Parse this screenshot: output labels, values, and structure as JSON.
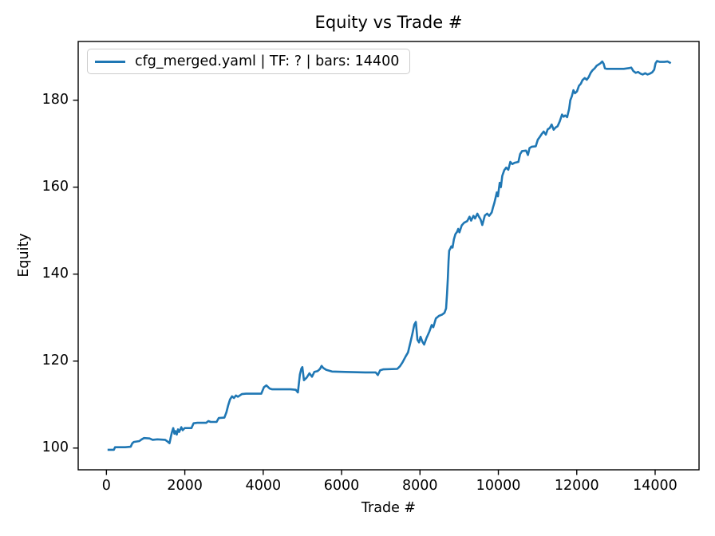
{
  "window": {
    "background": "#ffffff"
  },
  "chart_data": {
    "type": "line",
    "title": "Equity vs Trade #",
    "xlabel": "Trade #",
    "ylabel": "Equity",
    "x_ticks": [
      0,
      2000,
      4000,
      6000,
      8000,
      10000,
      12000,
      14000
    ],
    "y_ticks": [
      100,
      120,
      140,
      160,
      180
    ],
    "xlim": [
      -720,
      15120
    ],
    "ylim": [
      95.0,
      193.5
    ],
    "grid": false,
    "legend_position": "upper-left",
    "colors": {
      "line": "#1f77b4",
      "text": "#000000",
      "spine": "#000000",
      "legend_border": "#cccccc"
    },
    "series": [
      {
        "name": "cfg_merged.yaml | TF: ? | bars: 14400",
        "color": "#1f77b4",
        "points": [
          [
            30,
            99.6
          ],
          [
            120,
            99.6
          ],
          [
            190,
            99.6
          ],
          [
            220,
            100.2
          ],
          [
            480,
            100.2
          ],
          [
            620,
            100.3
          ],
          [
            660,
            101.1
          ],
          [
            700,
            101.4
          ],
          [
            760,
            101.5
          ],
          [
            840,
            101.6
          ],
          [
            900,
            102.0
          ],
          [
            960,
            102.3
          ],
          [
            1100,
            102.2
          ],
          [
            1180,
            101.9
          ],
          [
            1300,
            102.0
          ],
          [
            1500,
            101.9
          ],
          [
            1560,
            101.5
          ],
          [
            1610,
            101.1
          ],
          [
            1640,
            102.4
          ],
          [
            1670,
            103.6
          ],
          [
            1705,
            104.6
          ],
          [
            1735,
            103.3
          ],
          [
            1765,
            103.9
          ],
          [
            1795,
            103.1
          ],
          [
            1825,
            104.3
          ],
          [
            1855,
            103.7
          ],
          [
            1910,
            104.8
          ],
          [
            1945,
            104.1
          ],
          [
            1995,
            104.6
          ],
          [
            2170,
            104.6
          ],
          [
            2225,
            105.7
          ],
          [
            2320,
            105.8
          ],
          [
            2545,
            105.8
          ],
          [
            2600,
            106.2
          ],
          [
            2660,
            106.0
          ],
          [
            2810,
            106.0
          ],
          [
            2865,
            106.9
          ],
          [
            3010,
            107.0
          ],
          [
            3060,
            108.2
          ],
          [
            3105,
            109.8
          ],
          [
            3155,
            111.2
          ],
          [
            3205,
            111.9
          ],
          [
            3255,
            111.5
          ],
          [
            3305,
            112.1
          ],
          [
            3355,
            111.8
          ],
          [
            3455,
            112.4
          ],
          [
            3560,
            112.5
          ],
          [
            3950,
            112.5
          ],
          [
            4020,
            114.0
          ],
          [
            4080,
            114.4
          ],
          [
            4165,
            113.7
          ],
          [
            4230,
            113.5
          ],
          [
            4700,
            113.5
          ],
          [
            4830,
            113.4
          ],
          [
            4885,
            112.8
          ],
          [
            4935,
            116.9
          ],
          [
            4975,
            118.3
          ],
          [
            5000,
            118.6
          ],
          [
            5040,
            115.6
          ],
          [
            5110,
            116.2
          ],
          [
            5180,
            117.2
          ],
          [
            5245,
            116.4
          ],
          [
            5305,
            117.5
          ],
          [
            5390,
            117.7
          ],
          [
            5450,
            118.2
          ],
          [
            5490,
            118.9
          ],
          [
            5535,
            118.4
          ],
          [
            5605,
            118.0
          ],
          [
            5755,
            117.6
          ],
          [
            6100,
            117.5
          ],
          [
            6600,
            117.4
          ],
          [
            6870,
            117.4
          ],
          [
            6925,
            116.8
          ],
          [
            6985,
            117.9
          ],
          [
            7060,
            118.1
          ],
          [
            7420,
            118.2
          ],
          [
            7490,
            118.8
          ],
          [
            7555,
            119.7
          ],
          [
            7630,
            121.0
          ],
          [
            7695,
            122.0
          ],
          [
            7755,
            124.3
          ],
          [
            7805,
            126.2
          ],
          [
            7855,
            128.4
          ],
          [
            7895,
            129.0
          ],
          [
            7935,
            124.9
          ],
          [
            7975,
            124.3
          ],
          [
            8015,
            125.6
          ],
          [
            8060,
            124.5
          ],
          [
            8105,
            123.8
          ],
          [
            8160,
            125.2
          ],
          [
            8240,
            126.8
          ],
          [
            8300,
            128.3
          ],
          [
            8340,
            127.8
          ],
          [
            8405,
            129.8
          ],
          [
            8485,
            130.4
          ],
          [
            8565,
            130.7
          ],
          [
            8625,
            131.1
          ],
          [
            8665,
            132.1
          ],
          [
            8690,
            135.5
          ],
          [
            8710,
            139.0
          ],
          [
            8730,
            143.0
          ],
          [
            8745,
            145.4
          ],
          [
            8775,
            145.9
          ],
          [
            8800,
            146.4
          ],
          [
            8830,
            146.1
          ],
          [
            8865,
            148.0
          ],
          [
            8905,
            149.2
          ],
          [
            8945,
            149.7
          ],
          [
            8975,
            150.4
          ],
          [
            9005,
            149.6
          ],
          [
            9065,
            151.2
          ],
          [
            9125,
            151.8
          ],
          [
            9205,
            152.2
          ],
          [
            9265,
            153.2
          ],
          [
            9305,
            152.3
          ],
          [
            9365,
            153.4
          ],
          [
            9405,
            152.8
          ],
          [
            9465,
            153.9
          ],
          [
            9505,
            153.2
          ],
          [
            9545,
            152.6
          ],
          [
            9590,
            151.3
          ],
          [
            9655,
            153.5
          ],
          [
            9715,
            153.9
          ],
          [
            9765,
            153.4
          ],
          [
            9830,
            154.2
          ],
          [
            9865,
            155.4
          ],
          [
            9895,
            156.3
          ],
          [
            9930,
            157.6
          ],
          [
            9960,
            158.8
          ],
          [
            9990,
            157.9
          ],
          [
            10035,
            161.0
          ],
          [
            10065,
            160.0
          ],
          [
            10100,
            162.6
          ],
          [
            10150,
            163.9
          ],
          [
            10200,
            164.5
          ],
          [
            10255,
            164.0
          ],
          [
            10305,
            165.8
          ],
          [
            10355,
            165.3
          ],
          [
            10410,
            165.6
          ],
          [
            10510,
            165.8
          ],
          [
            10555,
            167.6
          ],
          [
            10605,
            168.3
          ],
          [
            10705,
            168.4
          ],
          [
            10755,
            167.4
          ],
          [
            10795,
            169.0
          ],
          [
            10855,
            169.3
          ],
          [
            10955,
            169.4
          ],
          [
            11005,
            170.9
          ],
          [
            11055,
            171.5
          ],
          [
            11105,
            172.2
          ],
          [
            11155,
            172.8
          ],
          [
            11210,
            172.1
          ],
          [
            11260,
            173.3
          ],
          [
            11310,
            173.6
          ],
          [
            11360,
            174.4
          ],
          [
            11410,
            173.2
          ],
          [
            11460,
            173.7
          ],
          [
            11510,
            174.0
          ],
          [
            11565,
            175.1
          ],
          [
            11625,
            176.7
          ],
          [
            11665,
            176.2
          ],
          [
            11705,
            176.5
          ],
          [
            11755,
            176.1
          ],
          [
            11805,
            178.0
          ],
          [
            11835,
            180.0
          ],
          [
            11875,
            180.9
          ],
          [
            11915,
            182.3
          ],
          [
            11955,
            181.6
          ],
          [
            12005,
            182.0
          ],
          [
            12055,
            183.3
          ],
          [
            12105,
            183.8
          ],
          [
            12145,
            184.6
          ],
          [
            12205,
            185.1
          ],
          [
            12255,
            184.7
          ],
          [
            12305,
            185.3
          ],
          [
            12355,
            186.3
          ],
          [
            12405,
            186.9
          ],
          [
            12455,
            187.3
          ],
          [
            12505,
            187.9
          ],
          [
            12555,
            188.2
          ],
          [
            12605,
            188.5
          ],
          [
            12650,
            188.9
          ],
          [
            12685,
            188.4
          ],
          [
            12720,
            187.3
          ],
          [
            12760,
            187.2
          ],
          [
            13000,
            187.2
          ],
          [
            13200,
            187.2
          ],
          [
            13345,
            187.4
          ],
          [
            13390,
            187.5
          ],
          [
            13445,
            186.7
          ],
          [
            13505,
            186.3
          ],
          [
            13565,
            186.5
          ],
          [
            13625,
            186.1
          ],
          [
            13685,
            185.9
          ],
          [
            13745,
            186.2
          ],
          [
            13805,
            185.9
          ],
          [
            13865,
            186.1
          ],
          [
            13925,
            186.4
          ],
          [
            13975,
            187.0
          ],
          [
            14010,
            188.5
          ],
          [
            14050,
            189.0
          ],
          [
            14120,
            188.8
          ],
          [
            14230,
            188.8
          ],
          [
            14320,
            188.9
          ],
          [
            14380,
            188.6
          ],
          [
            14400,
            188.5
          ]
        ]
      }
    ]
  }
}
